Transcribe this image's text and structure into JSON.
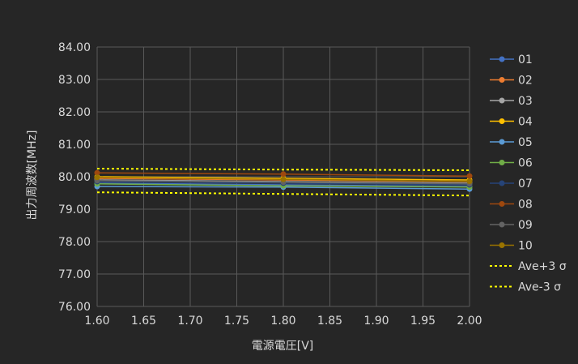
{
  "chart_data": {
    "type": "line",
    "xlabel": "電源電圧[V]",
    "ylabel": "出力周波数[MHz]",
    "xlim": [
      1.6,
      2.0
    ],
    "ylim": [
      76.0,
      84.0
    ],
    "x_ticks": [
      "1.60",
      "1.65",
      "1.70",
      "1.75",
      "1.80",
      "1.85",
      "1.90",
      "1.95",
      "2.00"
    ],
    "y_ticks": [
      "76.00",
      "77.00",
      "78.00",
      "79.00",
      "80.00",
      "81.00",
      "82.00",
      "83.00",
      "84.00"
    ],
    "grid": true,
    "legend_position": "right",
    "x": [
      1.6,
      1.8,
      2.0
    ],
    "series": [
      {
        "name": "01",
        "color": "#4472c4",
        "values": [
          79.8,
          79.75,
          79.7
        ],
        "marker": true
      },
      {
        "name": "02",
        "color": "#ed7d31",
        "values": [
          79.95,
          79.9,
          79.85
        ],
        "marker": true
      },
      {
        "name": "03",
        "color": "#a5a5a5",
        "values": [
          79.9,
          79.85,
          79.8
        ],
        "marker": true
      },
      {
        "name": "04",
        "color": "#ffc000",
        "values": [
          80.0,
          79.95,
          79.9
        ],
        "marker": true
      },
      {
        "name": "05",
        "color": "#5b9bd5",
        "values": [
          79.7,
          79.68,
          79.62
        ],
        "marker": true
      },
      {
        "name": "06",
        "color": "#70ad47",
        "values": [
          79.78,
          79.72,
          79.68
        ],
        "marker": true
      },
      {
        "name": "07",
        "color": "#264478",
        "values": [
          79.85,
          79.8,
          79.75
        ],
        "marker": true
      },
      {
        "name": "08",
        "color": "#9e480e",
        "values": [
          80.12,
          80.08,
          80.02
        ],
        "marker": true
      },
      {
        "name": "09",
        "color": "#636363",
        "values": [
          79.88,
          79.83,
          79.78
        ],
        "marker": true
      },
      {
        "name": "10",
        "color": "#997300",
        "values": [
          79.98,
          79.92,
          79.86
        ],
        "marker": true
      },
      {
        "name": "Ave+3 σ",
        "color": "#ffff00",
        "values": [
          80.25,
          80.22,
          80.2
        ],
        "marker": false,
        "dashed": true
      },
      {
        "name": "Ave-3 σ",
        "color": "#ffff00",
        "values": [
          79.52,
          79.47,
          79.42
        ],
        "marker": false,
        "dashed": true
      }
    ]
  }
}
